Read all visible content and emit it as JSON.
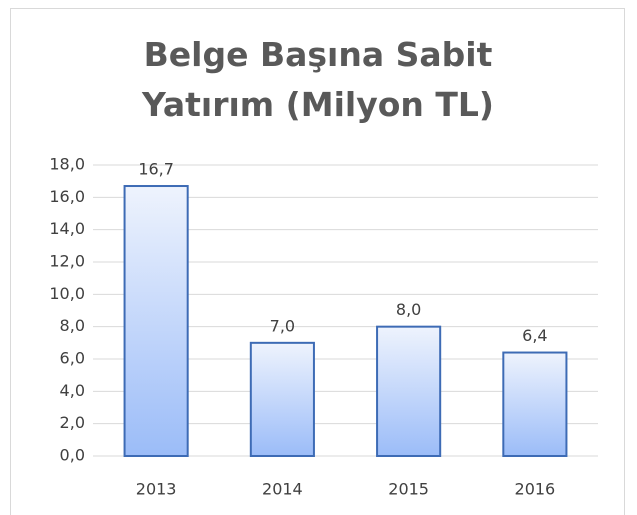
{
  "chart_data": {
    "type": "bar",
    "title": "Belge Başına Sabit Yatırım (Milyon TL)",
    "categories": [
      "2013",
      "2014",
      "2015",
      "2016"
    ],
    "values": [
      16.7,
      7.0,
      8.0,
      6.4
    ],
    "value_labels": [
      "16,7",
      "7,0",
      "8,0",
      "6,4"
    ],
    "color": "#9bbcf8",
    "ylim": [
      0,
      18
    ],
    "yticks": [
      {
        "value": 0,
        "label": "0,0"
      },
      {
        "value": 2,
        "label": "2,0"
      },
      {
        "value": 4,
        "label": "4,0"
      },
      {
        "value": 6,
        "label": "6,0"
      },
      {
        "value": 8,
        "label": "8,0"
      },
      {
        "value": 10,
        "label": "10,0"
      },
      {
        "value": 12,
        "label": "12,0"
      },
      {
        "value": 14,
        "label": "14,0"
      },
      {
        "value": 16,
        "label": "16,0"
      },
      {
        "value": 18,
        "label": "18,0"
      }
    ],
    "grid": true
  }
}
